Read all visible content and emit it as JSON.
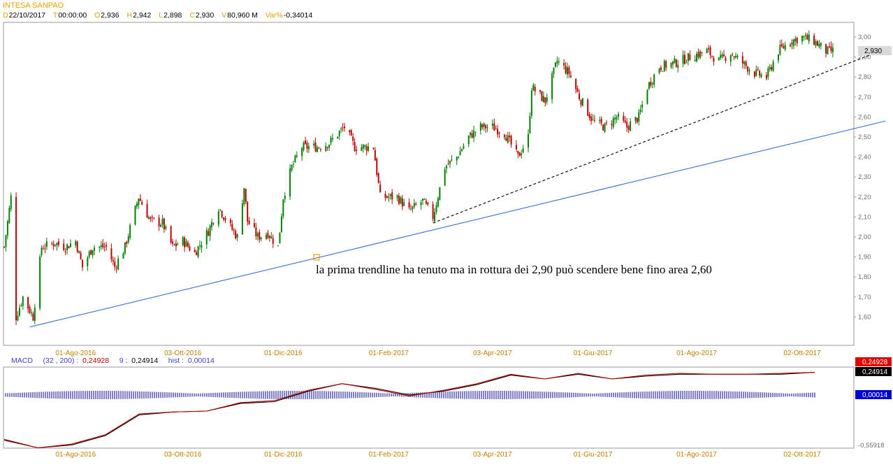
{
  "header": {
    "title": "INTESA SANPAO",
    "date_label": "D",
    "date": "22/10/2017",
    "time_label": "T",
    "time": "00:00:00",
    "open_label": "O",
    "open": "2,936",
    "high_label": "H",
    "high": "2,942",
    "low_label": "L",
    "low": "2,898",
    "close_label": "C",
    "close": "2,930",
    "volume_label": "V",
    "volume": "80,960 M",
    "var_label": "Var%",
    "var": "-0,34014"
  },
  "annotation": "la prima trendline ha tenuto ma in rottura dei 2,90 può scendere bene fino area 2,60",
  "last_price_tag": "2,930",
  "macd": {
    "label": "MACD",
    "params": "(32 , 200) :",
    "macd_value": "0,24928",
    "signal_label": "9 :",
    "signal_value": "0,24914",
    "hist_label": "hist :",
    "hist_value": "0,00014",
    "tag_macd": "0,24928",
    "tag_signal": "0,24914",
    "tag_hist": "0,00014",
    "bottom_label": "-0,55918",
    "colors": {
      "macd": "#c00000",
      "signal": "#000000",
      "hist": "#00008b"
    }
  },
  "chart_data": {
    "type": "candlestick",
    "title": "INTESA SANPAO",
    "ylim": [
      1.5,
      3.05
    ],
    "y_ticks": [
      "3,00",
      "2,90",
      "2,80",
      "2,70",
      "2,60",
      "2,50",
      "2,40",
      "2,30",
      "2,20",
      "2,10",
      "2,00",
      "1,90",
      "1,80",
      "1,70",
      "1,60"
    ],
    "x_ticks": [
      "01-Ago-2016",
      "03-Ott-2016",
      "01-Dic-2016",
      "01-Feb-2017",
      "03-Apr-2017",
      "01-Giu-2017",
      "01-Ago-2017",
      "02-Ott-2017"
    ],
    "colors": {
      "up": "#008000",
      "down": "#c00000",
      "trendline_long": "#3a6fd0",
      "trendline_short": "#000000"
    },
    "close_series": [
      [
        "2016-06-20",
        1.95
      ],
      [
        "2016-06-24",
        2.2
      ],
      [
        "2016-06-27",
        1.6
      ],
      [
        "2016-07-01",
        1.7
      ],
      [
        "2016-07-07",
        1.6
      ],
      [
        "2016-07-12",
        1.95
      ],
      [
        "2016-07-20",
        1.97
      ],
      [
        "2016-07-26",
        1.95
      ],
      [
        "2016-08-01",
        1.98
      ],
      [
        "2016-08-05",
        1.85
      ],
      [
        "2016-08-11",
        1.95
      ],
      [
        "2016-08-19",
        1.95
      ],
      [
        "2016-08-24",
        1.85
      ],
      [
        "2016-08-30",
        1.95
      ],
      [
        "2016-09-07",
        2.2
      ],
      [
        "2016-09-14",
        2.08
      ],
      [
        "2016-09-21",
        2.07
      ],
      [
        "2016-09-27",
        1.95
      ],
      [
        "2016-10-03",
        1.98
      ],
      [
        "2016-10-10",
        1.92
      ],
      [
        "2016-10-18",
        2.03
      ],
      [
        "2016-10-24",
        2.15
      ],
      [
        "2016-10-31",
        2.05
      ],
      [
        "2016-11-04",
        2.0
      ],
      [
        "2016-11-08",
        2.25
      ],
      [
        "2016-11-10",
        2.08
      ],
      [
        "2016-11-16",
        2.0
      ],
      [
        "2016-11-22",
        2.02
      ],
      [
        "2016-11-28",
        1.95
      ],
      [
        "2016-12-01",
        2.2
      ],
      [
        "2016-12-06",
        2.35
      ],
      [
        "2016-12-12",
        2.45
      ],
      [
        "2016-12-21",
        2.45
      ],
      [
        "2016-12-28",
        2.47
      ],
      [
        "2017-01-06",
        2.55
      ],
      [
        "2017-01-12",
        2.45
      ],
      [
        "2017-01-18",
        2.45
      ],
      [
        "2017-01-23",
        2.45
      ],
      [
        "2017-01-27",
        2.2
      ],
      [
        "2017-02-06",
        2.2
      ],
      [
        "2017-02-13",
        2.13
      ],
      [
        "2017-02-21",
        2.18
      ],
      [
        "2017-02-27",
        2.1
      ],
      [
        "2017-03-06",
        2.35
      ],
      [
        "2017-03-13",
        2.4
      ],
      [
        "2017-03-20",
        2.5
      ],
      [
        "2017-03-27",
        2.55
      ],
      [
        "2017-04-03",
        2.55
      ],
      [
        "2017-04-10",
        2.52
      ],
      [
        "2017-04-18",
        2.4
      ],
      [
        "2017-04-24",
        2.5
      ],
      [
        "2017-04-26",
        2.75
      ],
      [
        "2017-05-04",
        2.68
      ],
      [
        "2017-05-11",
        2.88
      ],
      [
        "2017-05-18",
        2.82
      ],
      [
        "2017-05-24",
        2.7
      ],
      [
        "2017-06-01",
        2.58
      ],
      [
        "2017-06-08",
        2.55
      ],
      [
        "2017-06-15",
        2.6
      ],
      [
        "2017-06-21",
        2.55
      ],
      [
        "2017-06-28",
        2.6
      ],
      [
        "2017-07-03",
        2.75
      ],
      [
        "2017-07-10",
        2.85
      ],
      [
        "2017-07-19",
        2.87
      ],
      [
        "2017-07-28",
        2.9
      ],
      [
        "2017-08-07",
        2.93
      ],
      [
        "2017-08-14",
        2.88
      ],
      [
        "2017-08-21",
        2.92
      ],
      [
        "2017-08-28",
        2.87
      ],
      [
        "2017-09-04",
        2.82
      ],
      [
        "2017-09-11",
        2.8
      ],
      [
        "2017-09-18",
        2.93
      ],
      [
        "2017-09-25",
        2.98
      ],
      [
        "2017-10-02",
        3.0
      ],
      [
        "2017-10-09",
        2.98
      ],
      [
        "2017-10-16",
        2.93
      ],
      [
        "2017-10-20",
        2.93
      ]
    ],
    "trendlines": [
      {
        "style": "solid",
        "color": "#3a6fd0",
        "from": [
          "2016-07-05",
          1.55
        ],
        "to": [
          "2017-11-20",
          2.58
        ]
      },
      {
        "style": "dashed",
        "color": "#000000",
        "from": [
          "2017-02-27",
          2.07
        ],
        "to": [
          "2017-11-20",
          2.94
        ]
      }
    ],
    "macd_series": {
      "macd": [
        -0.48,
        -0.56,
        -0.52,
        -0.42,
        -0.2,
        -0.18,
        -0.17,
        -0.08,
        -0.06,
        0.05,
        0.12,
        0.06,
        -0.01,
        0.05,
        0.12,
        0.22,
        0.17,
        0.23,
        0.17,
        0.21,
        0.23,
        0.22,
        0.22,
        0.23,
        0.24
      ],
      "signal": [
        -0.47,
        -0.56,
        -0.53,
        -0.43,
        -0.21,
        -0.18,
        -0.17,
        -0.09,
        -0.07,
        0.04,
        0.12,
        0.07,
        0.0,
        0.04,
        0.11,
        0.21,
        0.17,
        0.22,
        0.17,
        0.2,
        0.22,
        0.22,
        0.22,
        0.22,
        0.24
      ],
      "hist_range": [
        -0.04,
        0.04
      ]
    }
  }
}
